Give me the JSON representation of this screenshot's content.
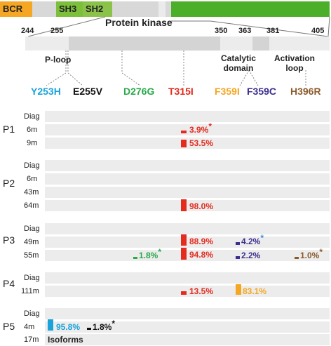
{
  "domains": {
    "bcr": "BCR",
    "sh3": "SH3",
    "sh2": "SH2",
    "kinase": "Protein kinase"
  },
  "positions": [
    "244",
    "255",
    "350",
    "363",
    "381",
    "405"
  ],
  "regions": {
    "ploop": "P-loop",
    "catalytic": "Catalytic domain",
    "activation": "Activation loop"
  },
  "mutations": [
    {
      "label": "Y253H",
      "color": "#1aa3d9"
    },
    {
      "label": "E255V",
      "color": "#111111"
    },
    {
      "label": "D276G",
      "color": "#2aa84a"
    },
    {
      "label": "T315I",
      "color": "#e32b1e"
    },
    {
      "label": "F359I",
      "color": "#f5a623"
    },
    {
      "label": "F359C",
      "color": "#3b2f8f"
    },
    {
      "label": "H396R",
      "color": "#8b5a2b"
    }
  ],
  "patients": [
    {
      "name": "P1",
      "times": [
        "Diag",
        "6m",
        "9m"
      ]
    },
    {
      "name": "P2",
      "times": [
        "Diag",
        "6m",
        "43m",
        "64m"
      ]
    },
    {
      "name": "P3",
      "times": [
        "Diag",
        "49m",
        "55m"
      ]
    },
    {
      "name": "P4",
      "times": [
        "Diag",
        "111m"
      ]
    },
    {
      "name": "P5",
      "times": [
        "Diag",
        "4m",
        "17m"
      ]
    }
  ],
  "values": {
    "p1_6m_t315i": "3.9%",
    "p1_9m_t315i": "53.5%",
    "p2_64m_t315i": "98.0%",
    "p3_49m_t315i": "88.9%",
    "p3_49m_f359c": "4.2%",
    "p3_55m_d276g": "1.8%",
    "p3_55m_t315i": "94.8%",
    "p3_55m_f359c": "2.2%",
    "p3_55m_h396r": "1.0%",
    "p4_111m_t315i": "13.5%",
    "p4_111m_f359i": "83.1%",
    "p5_4m_y253h": "95.8%",
    "p5_4m_e255v": "1.8%",
    "p5_17m_note": "Isoforms"
  },
  "asterisk": "*"
}
